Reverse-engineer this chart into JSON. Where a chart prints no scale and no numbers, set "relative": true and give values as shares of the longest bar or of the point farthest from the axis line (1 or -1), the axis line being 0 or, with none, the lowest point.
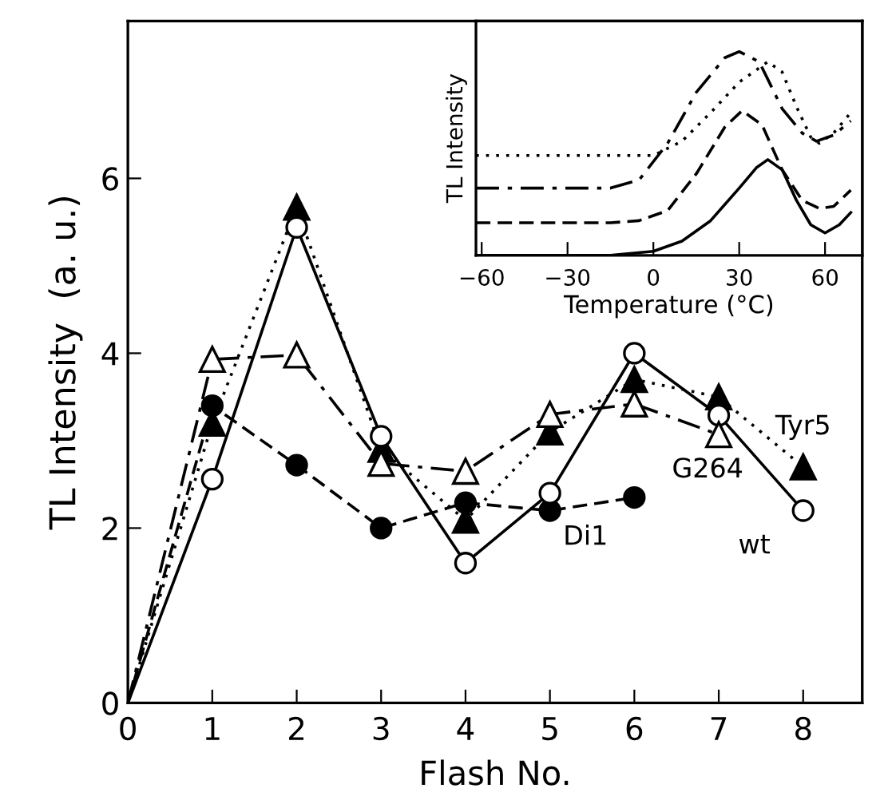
{
  "chart_data": [
    {
      "type": "line",
      "xlabel": "Flash No.",
      "ylabel": "TL Intensity  (a. u.)",
      "x": [
        0,
        1,
        2,
        3,
        4,
        5,
        6,
        7,
        8
      ],
      "xlim": [
        0,
        8.7
      ],
      "ylim": [
        0,
        7.8
      ],
      "xticks": [
        0,
        1,
        2,
        3,
        4,
        5,
        6,
        7,
        8
      ],
      "yticks": [
        0,
        2,
        4,
        6
      ],
      "grid": false,
      "legend": false,
      "series": [
        {
          "name": "wt",
          "color": "#000000",
          "marker": "circle",
          "line_style": "solid",
          "values": [
            0,
            2.56,
            5.44,
            3.05,
            1.6,
            2.4,
            4.0,
            3.29,
            2.2
          ]
        },
        {
          "name": "Tyr5",
          "color": "#000000",
          "marker": "triangle",
          "line_style": "dotted",
          "values": [
            0,
            3.2,
            5.67,
            2.9,
            2.09,
            3.1,
            3.7,
            3.5,
            2.7
          ]
        },
        {
          "name": "G264",
          "color": "#000000",
          "marker": "triangle",
          "line_style": "dashdot",
          "values": [
            0,
            3.93,
            3.98,
            2.74,
            2.65,
            3.3,
            3.42,
            3.07,
            null
          ]
        },
        {
          "name": "Di1",
          "color": "#000000",
          "marker": "circle",
          "line_style": "dashed",
          "values": [
            0,
            3.4,
            2.72,
            2.0,
            2.29,
            2.2,
            2.35,
            null,
            null
          ]
        }
      ]
    },
    {
      "type": "line",
      "relative": true,
      "xlabel": "Temperature (°C)",
      "ylabel": "TL Intensity",
      "xlim": [
        -62,
        73
      ],
      "xticks": [
        {
          "value": -60,
          "label": "−60"
        },
        {
          "value": -30,
          "label": "−30"
        },
        0,
        30,
        60
      ],
      "tick_labels": "x",
      "grid": false,
      "legend": false,
      "series": [
        {
          "color": "#000000",
          "line_style": "solid",
          "x": [
            -62,
            -15,
            0,
            10,
            20,
            30,
            36,
            40,
            45,
            50,
            55,
            60,
            65,
            69
          ],
          "values": [
            0,
            0,
            0.02,
            0.07,
            0.17,
            0.33,
            0.43,
            0.47,
            0.42,
            0.27,
            0.15,
            0.11,
            0.15,
            0.21
          ]
        },
        {
          "color": "#000000",
          "line_style": "dotted",
          "x": [
            -62,
            0,
            10,
            20,
            30,
            40,
            45,
            50,
            55,
            58,
            63,
            69
          ],
          "values": [
            0.49,
            0.49,
            0.56,
            0.7,
            0.85,
            0.95,
            0.9,
            0.73,
            0.58,
            0.55,
            0.6,
            0.7
          ]
        },
        {
          "color": "#000000",
          "line_style": "dashdot",
          "x": [
            -62,
            -15,
            -5,
            5,
            15,
            25,
            30,
            37,
            45,
            52,
            57,
            63,
            69
          ],
          "values": [
            0.33,
            0.33,
            0.37,
            0.55,
            0.8,
            0.97,
            1.0,
            0.95,
            0.72,
            0.6,
            0.56,
            0.59,
            0.66
          ]
        },
        {
          "color": "#000000",
          "line_style": "dashed",
          "x": [
            -62,
            -15,
            -5,
            5,
            15,
            25,
            31,
            38,
            45,
            52,
            58,
            63,
            69
          ],
          "values": [
            0.16,
            0.16,
            0.17,
            0.22,
            0.4,
            0.63,
            0.71,
            0.64,
            0.42,
            0.27,
            0.23,
            0.24,
            0.32
          ]
        }
      ]
    }
  ]
}
